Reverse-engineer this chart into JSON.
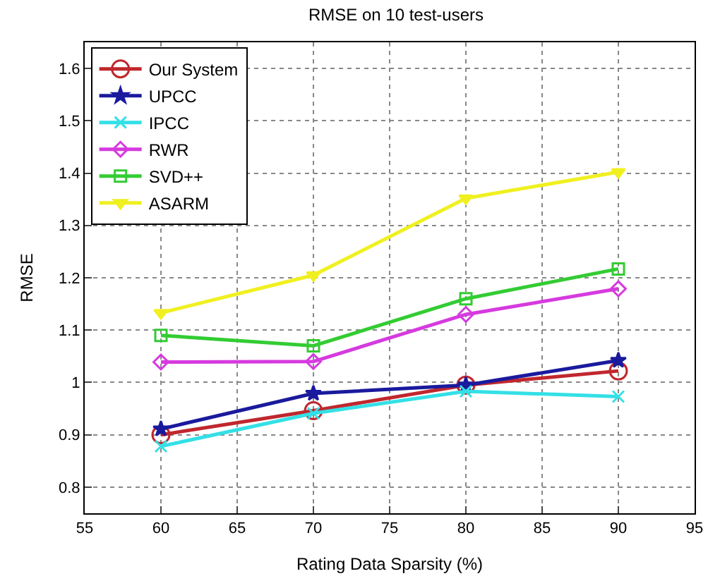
{
  "chart_data": {
    "type": "line",
    "title": "RMSE on 10 test-users",
    "xlabel": "Rating Data Sparsity (%)",
    "ylabel": "RMSE",
    "x": [
      60,
      70,
      80,
      90
    ],
    "series": [
      {
        "name": "Our System",
        "color": "#c0272d",
        "marker": "circle",
        "values": [
          0.9,
          0.946,
          0.995,
          1.022
        ]
      },
      {
        "name": "UPCC",
        "color": "#1a1a9e",
        "marker": "star",
        "values": [
          0.911,
          0.979,
          0.995,
          1.042
        ]
      },
      {
        "name": "IPCC",
        "color": "#33e0e6",
        "marker": "cross",
        "values": [
          0.878,
          0.941,
          0.983,
          0.973
        ]
      },
      {
        "name": "RWR",
        "color": "#d63adf",
        "marker": "diamond",
        "values": [
          1.039,
          1.04,
          1.13,
          1.179
        ]
      },
      {
        "name": "SVD++",
        "color": "#33cc33",
        "marker": "square",
        "values": [
          1.09,
          1.07,
          1.16,
          1.217
        ]
      },
      {
        "name": "ASARM",
        "color": "#f0f020",
        "marker": "triangle",
        "values": [
          1.133,
          1.205,
          1.352,
          1.402
        ]
      }
    ],
    "xlim": [
      55,
      95
    ],
    "xticks": [
      55,
      60,
      65,
      70,
      75,
      80,
      85,
      90,
      95
    ],
    "ylim": [
      0.75,
      1.65
    ],
    "yticks": [
      0.8,
      0.9,
      1,
      1.1,
      1.2,
      1.3,
      1.4,
      1.5,
      1.6
    ],
    "grid": true,
    "legend": "top left",
    "line_style": "solid"
  }
}
